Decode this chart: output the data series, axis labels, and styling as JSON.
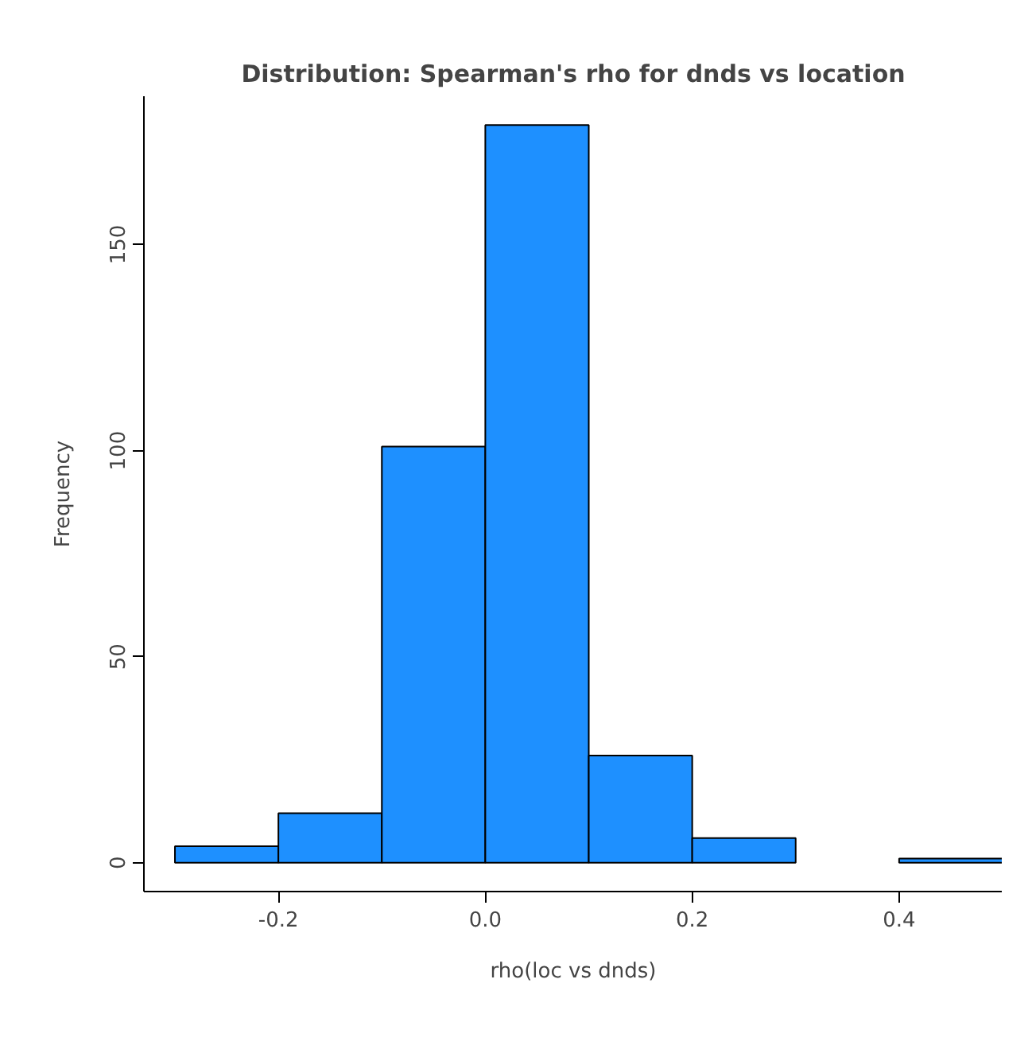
{
  "chart_data": {
    "type": "histogram",
    "title": "Distribution: Spearman's rho for dnds vs location",
    "xlabel": "rho(loc vs dnds)",
    "ylabel": "Frequency",
    "bins": [
      -0.3,
      -0.2,
      -0.1,
      0.0,
      0.1,
      0.2,
      0.3,
      0.4,
      0.5
    ],
    "values": [
      4,
      12,
      101,
      179,
      26,
      6,
      0,
      1
    ],
    "color": "#1e90ff",
    "xlim": [
      -0.33,
      0.5
    ],
    "ylim": [
      -7,
      186
    ],
    "xticks": [
      {
        "value": -0.2,
        "label": "-0.2"
      },
      {
        "value": 0.0,
        "label": "0.0"
      },
      {
        "value": 0.2,
        "label": "0.2"
      },
      {
        "value": 0.4,
        "label": "0.4"
      }
    ],
    "yticks": [
      0,
      50,
      100,
      150
    ],
    "grid": false
  }
}
